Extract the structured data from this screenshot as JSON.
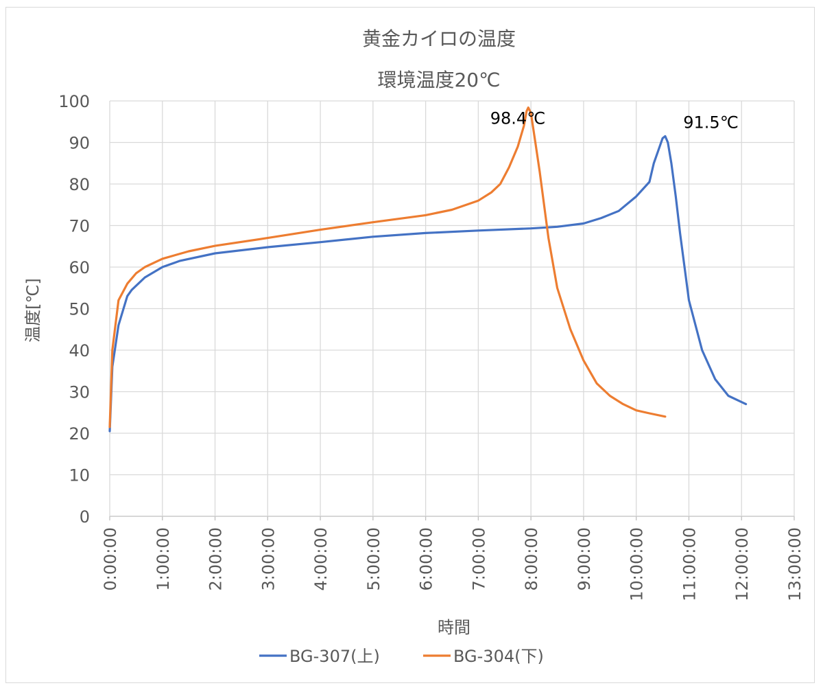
{
  "chart_data": {
    "type": "line",
    "title": "黄金カイロの温度",
    "subtitle": "環境温度20℃",
    "xlabel": "時間",
    "ylabel": "温度[℃]",
    "ylim": [
      0,
      100
    ],
    "yticks": [
      0,
      10,
      20,
      30,
      40,
      50,
      60,
      70,
      80,
      90,
      100
    ],
    "xlim": [
      "0:00:00",
      "13:00:00"
    ],
    "xticks": [
      "0:00:00",
      "1:00:00",
      "2:00:00",
      "3:00:00",
      "4:00:00",
      "5:00:00",
      "6:00:00",
      "7:00:00",
      "8:00:00",
      "9:00:00",
      "10:00:00",
      "11:00:00",
      "12:00:00",
      "13:00:00"
    ],
    "grid": true,
    "legend_position": "bottom",
    "series": [
      {
        "name": "BG-307(上)",
        "color": "#4472c4",
        "x": [
          "0:00:00",
          "0:03:00",
          "0:10:00",
          "0:20:00",
          "0:25:00",
          "0:40:00",
          "1:00:00",
          "1:20:00",
          "2:00:00",
          "3:00:00",
          "4:00:00",
          "5:00:00",
          "6:00:00",
          "7:00:00",
          "8:00:00",
          "8:30:00",
          "9:00:00",
          "9:20:00",
          "9:40:00",
          "10:00:00",
          "10:15:00",
          "10:20:00",
          "10:25:00",
          "10:30:00",
          "10:33:00",
          "10:36:00",
          "10:40:00",
          "10:45:00",
          "10:50:00",
          "11:00:00",
          "11:15:00",
          "11:30:00",
          "11:45:00",
          "12:00:00",
          "12:05:00"
        ],
        "values": [
          20.5,
          36,
          46,
          53,
          54.5,
          57.5,
          60,
          61.5,
          63.3,
          64.8,
          66,
          67.3,
          68.2,
          68.8,
          69.3,
          69.7,
          70.5,
          71.8,
          73.5,
          77,
          80.5,
          85,
          88,
          91,
          91.5,
          90,
          85,
          77,
          68,
          52,
          40,
          33,
          29,
          27.5,
          27
        ]
      },
      {
        "name": "BG-304(下)",
        "color": "#ed7d31",
        "x": [
          "0:00:00",
          "0:03:00",
          "0:10:00",
          "0:20:00",
          "0:30:00",
          "0:40:00",
          "1:00:00",
          "1:30:00",
          "2:00:00",
          "3:00:00",
          "4:00:00",
          "5:00:00",
          "6:00:00",
          "6:30:00",
          "7:00:00",
          "7:15:00",
          "7:25:00",
          "7:35:00",
          "7:45:00",
          "7:52:00",
          "7:55:00",
          "7:57:00",
          "8:00:00",
          "8:05:00",
          "8:10:00",
          "8:15:00",
          "8:20:00",
          "8:30:00",
          "8:45:00",
          "9:00:00",
          "9:15:00",
          "9:30:00",
          "9:45:00",
          "10:00:00",
          "10:15:00",
          "10:33:00"
        ],
        "values": [
          21.5,
          40,
          52,
          56,
          58.5,
          60,
          62,
          63.8,
          65.1,
          67,
          69,
          70.8,
          72.5,
          73.8,
          76,
          78,
          80,
          84,
          89,
          94,
          97.5,
          98.4,
          97,
          90,
          83,
          75,
          67,
          55,
          45,
          37.5,
          32,
          29,
          27,
          25.5,
          24.8,
          24
        ]
      }
    ],
    "annotations": [
      {
        "text": "98.4℃",
        "x": "7:45:00",
        "y": 94.5
      },
      {
        "text": "91.5℃",
        "x": "11:25:00",
        "y": 93.5
      }
    ]
  }
}
